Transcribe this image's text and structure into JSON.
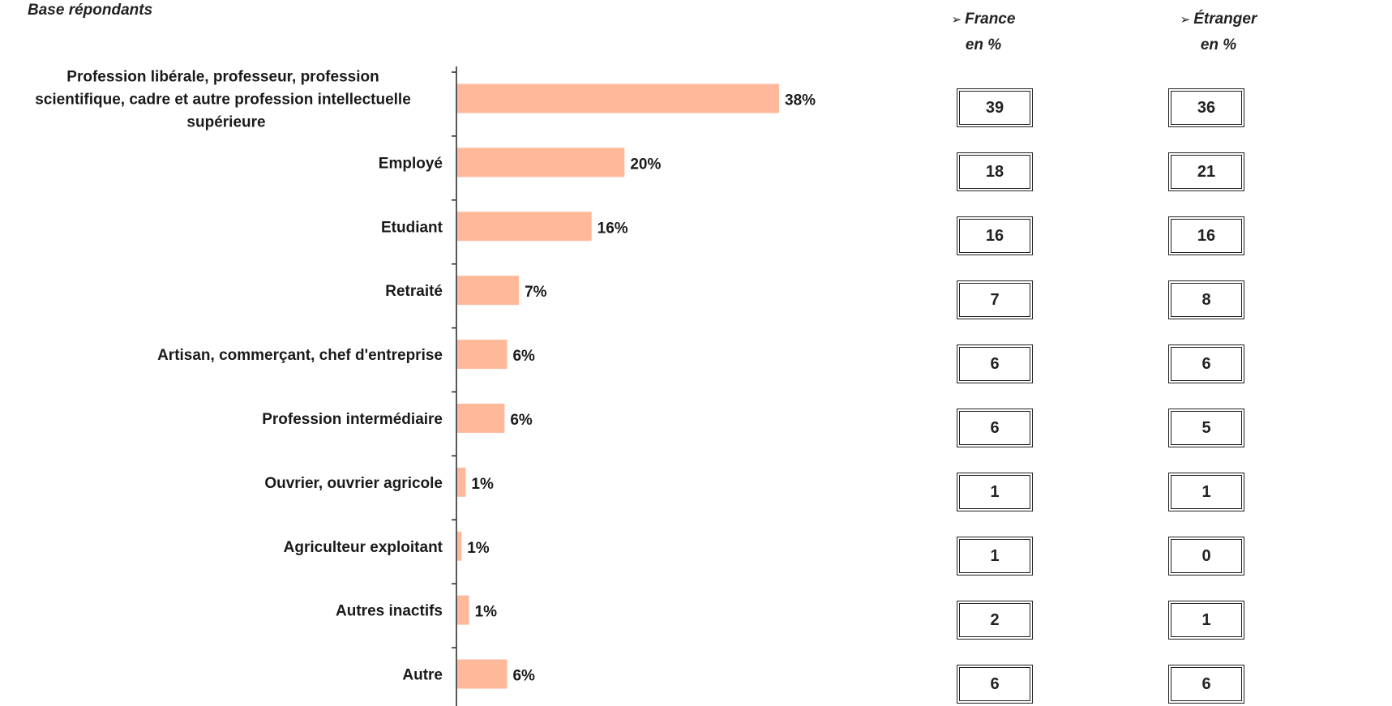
{
  "base_label": "Base répondants",
  "columns": {
    "france": {
      "title": "France",
      "unit": "en %"
    },
    "etranger": {
      "title": "Étranger",
      "unit": "en %"
    }
  },
  "chart_data": {
    "type": "bar",
    "orientation": "horizontal",
    "categories": [
      "Profession libérale, professeur, profession scientifique, cadre et autre profession intellectuelle supérieure",
      "Employé",
      "Etudiant",
      "Retraité",
      "Artisan, commerçant, chef d'entreprise",
      "Profession intermédiaire",
      "Ouvrier, ouvrier agricole",
      "Agriculteur exploitant",
      "Autres inactifs",
      "Autre"
    ],
    "values": [
      38.1,
      19.8,
      15.9,
      7.3,
      5.9,
      5.6,
      1.0,
      0.5,
      1.4,
      5.9
    ],
    "labels": [
      "38%",
      "20%",
      "16%",
      "7%",
      "6%",
      "6%",
      "1%",
      "1%",
      "1%",
      "6%"
    ],
    "bar_color": "#ffb99a",
    "xlim": [
      0,
      100
    ],
    "grid": false
  },
  "table": {
    "france": [
      "39",
      "18",
      "16",
      "7",
      "6",
      "6",
      "1",
      "1",
      "2",
      "6"
    ],
    "etranger": [
      "36",
      "21",
      "16",
      "8",
      "6",
      "5",
      "1",
      "0",
      "1",
      "6"
    ]
  },
  "wrapped_category_lines": [
    "Profession libérale, professeur, profession",
    "scientifique, cadre et autre profession intellectuelle",
    "supérieure"
  ]
}
